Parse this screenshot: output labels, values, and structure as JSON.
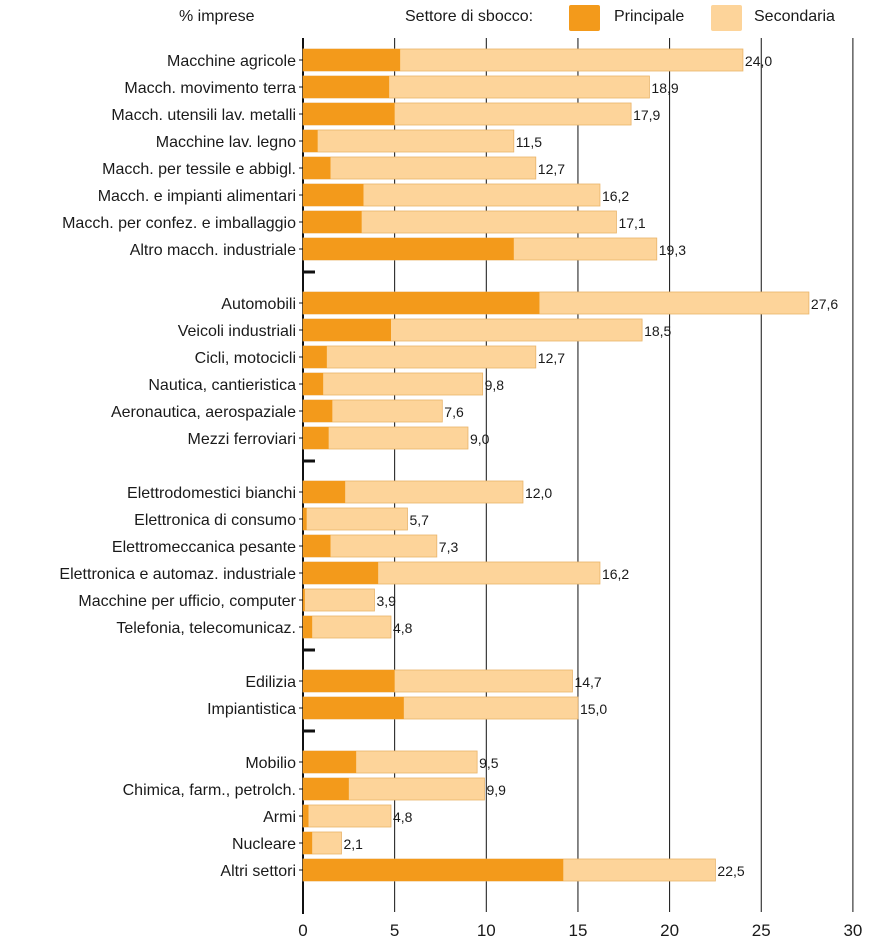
{
  "header": {
    "axis_title": "% imprese",
    "legend_title": "Settore di sbocco:",
    "legend_primary": "Principale",
    "legend_secondary": "Secondaria"
  },
  "colors": {
    "primary": "#f39a1b",
    "secondary": "#fdd49a",
    "secondary_edge": "#e9b46a",
    "grid": "#111111"
  },
  "chart_data": {
    "type": "bar",
    "orientation": "horizontal",
    "stacked": true,
    "title": "",
    "xlabel": "",
    "ylabel": "% imprese",
    "xlim": [
      0,
      30
    ],
    "xticks": [
      0,
      5,
      10,
      15,
      20,
      25,
      30
    ],
    "grid": true,
    "legend_position": "top-right",
    "groups": [
      {
        "categories": [
          "Macchine agricole",
          "Macch. movimento terra",
          "Macch. utensili lav. metalli",
          "Macchine lav. legno",
          "Macch. per tessile e abbigl.",
          "Macch. e impianti alimentari",
          "Macch. per confez. e imballaggio",
          "Altro macch. industriale"
        ],
        "principale": [
          5.3,
          4.7,
          5.0,
          0.8,
          1.5,
          3.3,
          3.2,
          11.5
        ],
        "totale": [
          24.0,
          18.9,
          17.9,
          11.5,
          12.7,
          16.2,
          17.1,
          19.3
        ],
        "labels": [
          "24,0",
          "18,9",
          "17,9",
          "11,5",
          "12,7",
          "16,2",
          "17,1",
          "19,3"
        ]
      },
      {
        "categories": [
          "Automobili",
          "Veicoli industriali",
          "Cicli, motocicli",
          "Nautica, cantieristica",
          "Aeronautica, aerospaziale",
          "Mezzi ferroviari"
        ],
        "principale": [
          12.9,
          4.8,
          1.3,
          1.1,
          1.6,
          1.4
        ],
        "totale": [
          27.6,
          18.5,
          12.7,
          9.8,
          7.6,
          9.0
        ],
        "labels": [
          "27,6",
          "18,5",
          "12,7",
          "9,8",
          "7,6",
          "9,0"
        ]
      },
      {
        "categories": [
          "Elettrodomestici bianchi",
          "Elettronica di consumo",
          "Elettromeccanica pesante",
          "Elettronica e automaz. industriale",
          "Macchine per ufficio, computer",
          "Telefonia, telecomunicaz."
        ],
        "principale": [
          2.3,
          0.2,
          1.5,
          4.1,
          0.1,
          0.5
        ],
        "totale": [
          12.0,
          5.7,
          7.3,
          16.2,
          3.9,
          4.8
        ],
        "labels": [
          "12,0",
          "5,7",
          "7,3",
          "16,2",
          "3,9",
          "4,8"
        ]
      },
      {
        "categories": [
          "Edilizia",
          "Impiantistica"
        ],
        "principale": [
          5.0,
          5.5
        ],
        "totale": [
          14.7,
          15.0
        ],
        "labels": [
          "14,7",
          "15,0"
        ]
      },
      {
        "categories": [
          "Mobilio",
          "Chimica, farm., petrolch.",
          "Armi",
          "Nucleare",
          "Altri settori"
        ],
        "principale": [
          2.9,
          2.5,
          0.3,
          0.5,
          14.2
        ],
        "totale": [
          9.5,
          9.9,
          4.8,
          2.1,
          22.5
        ],
        "labels": [
          "9,5",
          "9,9",
          "4,8",
          "2,1",
          "22,5"
        ]
      }
    ]
  }
}
